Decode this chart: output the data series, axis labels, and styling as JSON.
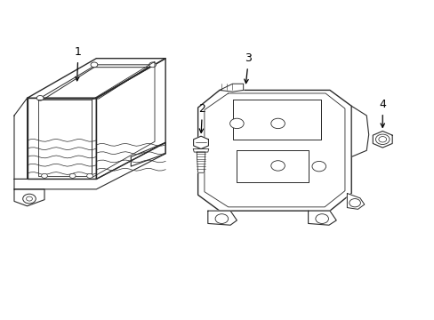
{
  "background_color": "#ffffff",
  "line_color": "#2a2a2a",
  "line_width": 1.0,
  "label_color": "#000000",
  "fig_width": 4.89,
  "fig_height": 3.6,
  "dpi": 100,
  "arrow_color": "#000000"
}
